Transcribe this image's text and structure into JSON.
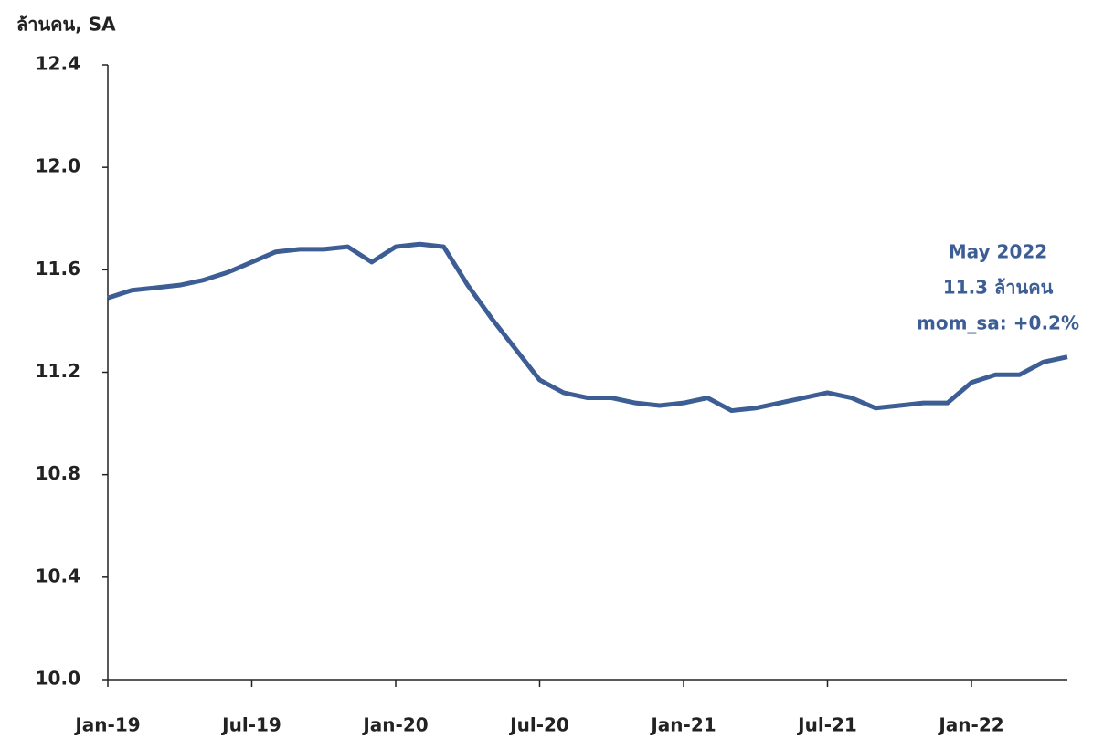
{
  "chart_data": {
    "type": "line",
    "y_axis_label": "ล้านคน, SA",
    "annotation": [
      "May 2022",
      "11.3 ล้านคน",
      "mom_sa: +0.2%"
    ],
    "categories": [
      "Jan-19",
      null,
      null,
      null,
      null,
      null,
      "Jul-19",
      null,
      null,
      null,
      null,
      null,
      "Jan-20",
      null,
      null,
      null,
      null,
      null,
      "Jul-20",
      null,
      null,
      null,
      null,
      null,
      "Jan-21",
      null,
      null,
      null,
      null,
      null,
      "Jul-21",
      null,
      null,
      null,
      null,
      null,
      "Jan-22",
      null,
      null,
      null,
      null
    ],
    "values": [
      11.49,
      11.52,
      11.53,
      11.54,
      11.56,
      11.59,
      11.63,
      11.67,
      11.68,
      11.68,
      11.69,
      11.63,
      11.69,
      11.7,
      11.69,
      11.54,
      11.41,
      11.29,
      11.17,
      11.12,
      11.1,
      11.1,
      11.08,
      11.07,
      11.08,
      11.1,
      11.05,
      11.06,
      11.08,
      11.1,
      11.12,
      11.1,
      11.06,
      11.07,
      11.08,
      11.08,
      11.16,
      11.19,
      11.19,
      11.24,
      11.26
    ],
    "color": "#3d5d95",
    "ylim": [
      10.0,
      12.4
    ],
    "yticks": [
      {
        "value": 10,
        "label": "10.0"
      },
      10.4,
      10.8,
      11.2,
      11.6,
      {
        "value": 12,
        "label": "12.0"
      },
      12.4
    ],
    "grid": false
  }
}
